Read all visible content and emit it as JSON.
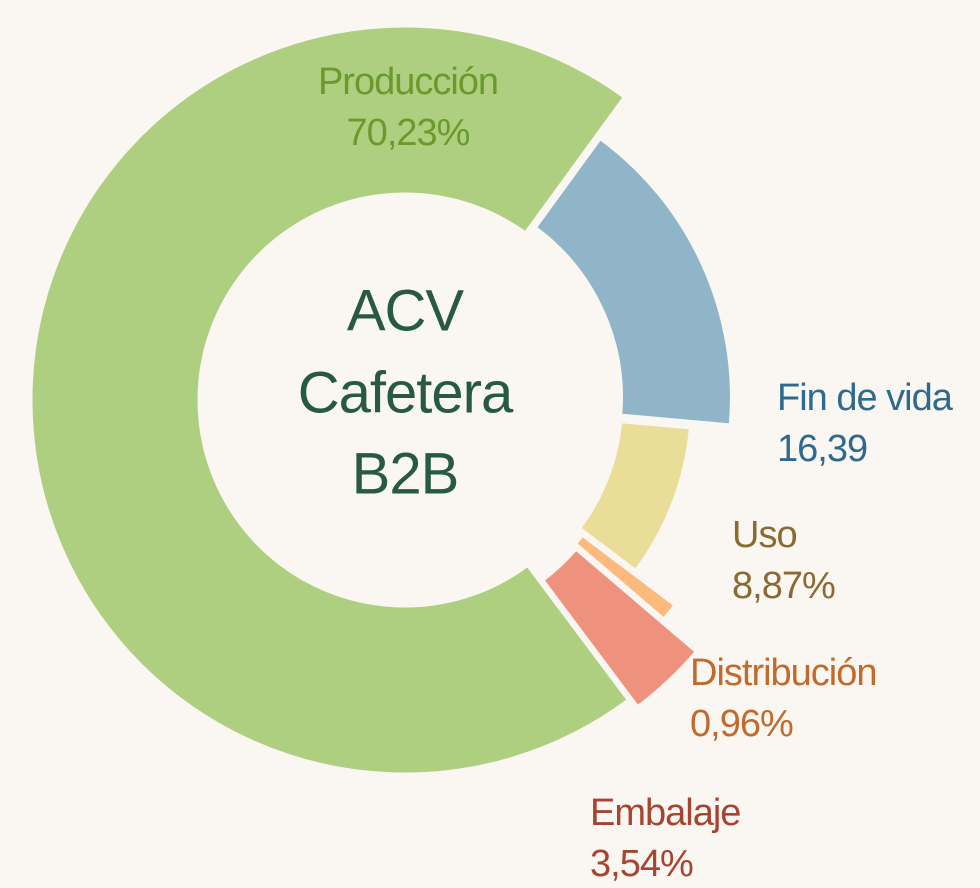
{
  "chart_data": {
    "type": "donut",
    "center_label": [
      "ACV",
      "Cafetera",
      "B2B"
    ],
    "categories": [
      "Producción",
      "Fin de vida",
      "Uso",
      "Distribución",
      "Embalaje"
    ],
    "values": [
      70.23,
      16.39,
      8.87,
      0.96,
      3.54
    ],
    "value_labels": [
      "70,23%",
      "16,39",
      "8,87%",
      "0,96%",
      "3,54%"
    ],
    "colors": [
      "#aecf80",
      "#90b5c8",
      "#e9dd98",
      "#fbb97e",
      "#ee927d"
    ],
    "label_colors": [
      "#6b9a2c",
      "#2f6a8e",
      "#8a6a30",
      "#c2692c",
      "#a8432f"
    ]
  }
}
